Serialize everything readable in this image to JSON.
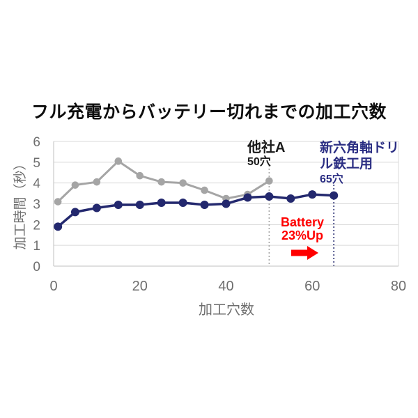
{
  "chart_data": {
    "type": "line",
    "title": "フル充電からバッテリー切れまでの加工穴数",
    "xlabel": "加工穴数",
    "ylabel": "加工時間（秒）",
    "xlim": [
      0,
      80
    ],
    "ylim": [
      0,
      6
    ],
    "x_ticks": [
      0,
      20,
      40,
      60,
      80
    ],
    "y_ticks": [
      0,
      1,
      2,
      3,
      4,
      5,
      6
    ],
    "grid": "horizontal",
    "legend_position": "none (series identified by on-chart text labels)",
    "series": [
      {
        "name": "他社A",
        "result_label": "50穴",
        "color": "#A5A5A5",
        "x": [
          1,
          5,
          10,
          15,
          20,
          25,
          30,
          35,
          40,
          45,
          50
        ],
        "y": [
          3.1,
          3.9,
          4.05,
          5.05,
          4.35,
          4.05,
          4.0,
          3.65,
          3.25,
          3.45,
          4.1
        ]
      },
      {
        "name": "新六角軸ドリル鉄工用",
        "result_label": "65穴",
        "color": "#23286E",
        "x": [
          1,
          5,
          10,
          15,
          20,
          25,
          30,
          35,
          40,
          45,
          50,
          55,
          60,
          65
        ],
        "y": [
          1.9,
          2.6,
          2.8,
          2.95,
          2.95,
          3.05,
          3.05,
          2.95,
          3.0,
          3.3,
          3.35,
          3.25,
          3.45,
          3.4
        ]
      }
    ],
    "leader_lines": [
      {
        "at_x": 50,
        "color": "#A5A5A5"
      },
      {
        "at_x": 65,
        "color": "#23286E"
      }
    ]
  },
  "annotations": {
    "competitor": {
      "name": "他社A",
      "holes": "50穴",
      "color": "#1A1A1A"
    },
    "product": {
      "name_line1": "新六角軸ドリ",
      "name_line2": "ル鉄工用",
      "holes": "65穴",
      "color": "#2B2E83"
    },
    "battery": {
      "line1": "Battery",
      "line2": "23%Up",
      "color": "#FF0000"
    }
  },
  "colors": {
    "grid": "#D9D9D9",
    "axis": "#BFBFBF",
    "axis_text": "#6E6E6E",
    "title_text": "#0D0D0D",
    "background": "#FFFFFF"
  }
}
